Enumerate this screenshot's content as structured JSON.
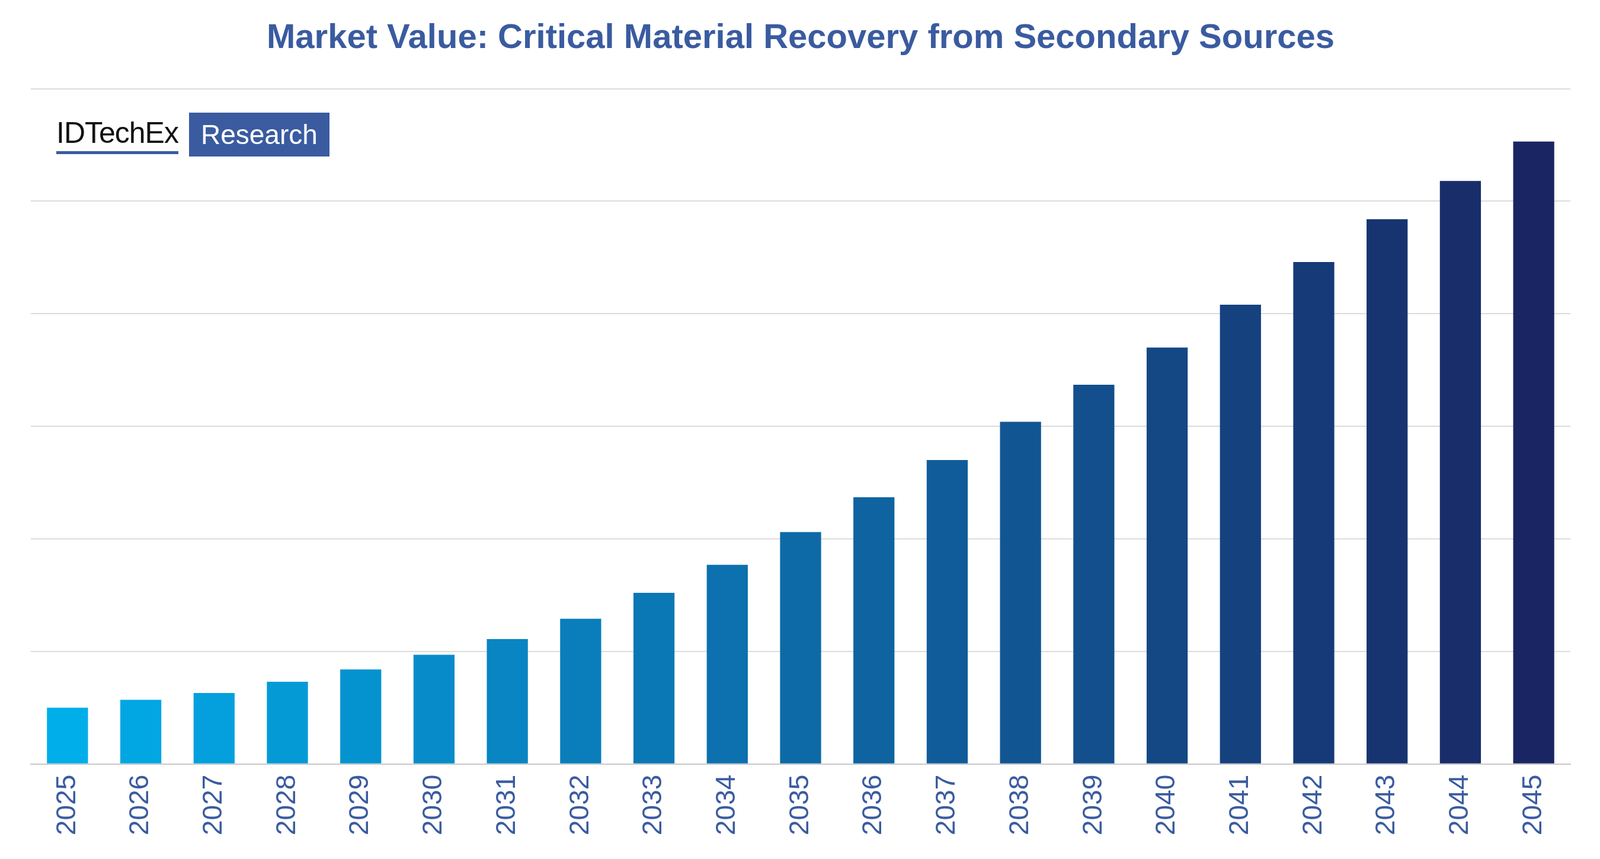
{
  "chart_data": {
    "type": "bar",
    "title": "Market Value: Critical Material Recovery from Secondary Sources",
    "annotations": [
      "IDTechEx",
      "Research"
    ],
    "categories": [
      "2025",
      "2026",
      "2027",
      "2028",
      "2029",
      "2030",
      "2031",
      "2032",
      "2033",
      "2034",
      "2035",
      "2036",
      "2037",
      "2038",
      "2039",
      "2040",
      "2041",
      "2042",
      "2043",
      "2044",
      "2045"
    ],
    "values": [
      0.5,
      0.57,
      0.63,
      0.73,
      0.84,
      0.97,
      1.11,
      1.29,
      1.52,
      1.77,
      2.06,
      2.37,
      2.7,
      3.04,
      3.37,
      3.7,
      4.08,
      4.46,
      4.84,
      5.18,
      5.53
    ],
    "colors": [
      "#00aeea",
      "#01a7e3",
      "#03a0dd",
      "#049ad6",
      "#0593cf",
      "#078cc9",
      "#0885c2",
      "#097ebb",
      "#0a78b4",
      "#0c71ae",
      "#0d6aa7",
      "#0e63a0",
      "#105c9a",
      "#115693",
      "#124f8c",
      "#144885",
      "#15417f",
      "#163a78",
      "#173471",
      "#192d6b",
      "#1a2664"
    ],
    "ylim": [
      0,
      6
    ],
    "yticks": [
      0,
      1,
      2,
      3,
      4,
      5,
      6
    ],
    "grid": true,
    "tick_labels": "x"
  }
}
